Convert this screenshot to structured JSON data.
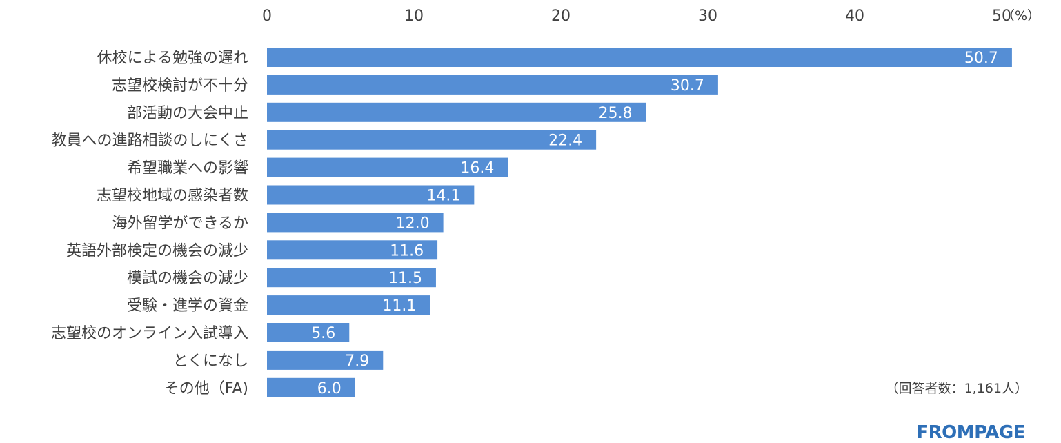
{
  "chart_data": {
    "type": "bar",
    "orientation": "horizontal",
    "unit": "（%）",
    "xlim": [
      0,
      50
    ],
    "xticks": [
      "0",
      "10",
      "20",
      "30",
      "40",
      "50"
    ],
    "categories": [
      "休校による勉強の遅れ",
      "志望校検討が不十分",
      "部活動の大会中止",
      "教員への進路相談のしにくさ",
      "希望職業への影響",
      "志望校地域の感染者数",
      "海外留学ができるか",
      "英語外部検定の機会の減少",
      "模試の機会の減少",
      "受験・進学の資金",
      "志望校のオンライン入試導入",
      "とくになし",
      "その他（FA)"
    ],
    "values": [
      50.7,
      30.7,
      25.8,
      22.4,
      16.4,
      14.1,
      12.0,
      11.6,
      11.5,
      11.1,
      5.6,
      7.9,
      6.0
    ],
    "value_labels": [
      "50.7",
      "30.7",
      "25.8",
      "22.4",
      "16.4",
      "14.1",
      "12.0",
      "11.6",
      "11.5",
      "11.1",
      "5.6",
      "7.9",
      "6.0"
    ],
    "bar_color": "#558ed5"
  },
  "note": "（回答者数：1,161人）",
  "brand": "FROMPAGE",
  "brand_color": "#2e6fb7"
}
